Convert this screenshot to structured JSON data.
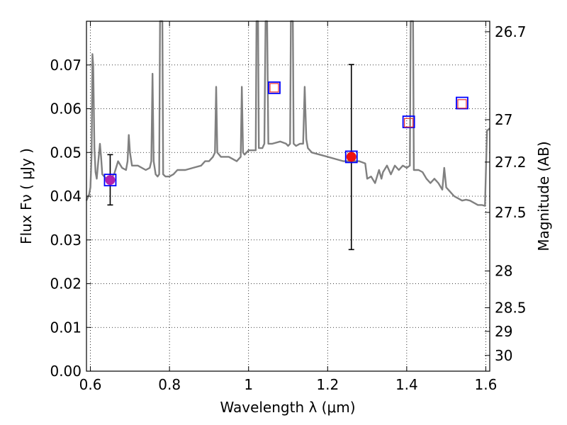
{
  "chart_data": {
    "type": "line",
    "xlabel": "Wavelength  λ (μm)",
    "ylabel": "Flux  Fν  ( μJy )",
    "ylabel_right": "Magnitude (AB)",
    "xlim": [
      0.59,
      1.61
    ],
    "ylim": [
      0.0,
      0.08
    ],
    "grid": true,
    "x_ticks": [
      0.6,
      0.8,
      1.0,
      1.2,
      1.4,
      1.6
    ],
    "x_tick_labels": [
      "0.6",
      "0.8",
      "1",
      "1.2",
      "1.4",
      "1.6"
    ],
    "y_ticks": [
      0.0,
      0.01,
      0.02,
      0.03,
      0.04,
      0.05,
      0.06,
      0.07
    ],
    "y_tick_labels": [
      "0.00",
      "0.01",
      "0.02",
      "0.03",
      "0.04",
      "0.05",
      "0.06",
      "0.07"
    ],
    "mag_ticks": [
      {
        "label": "26.7",
        "flux": 0.0776
      },
      {
        "label": "27",
        "flux": 0.0575
      },
      {
        "label": "27.2",
        "flux": 0.0478
      },
      {
        "label": "27.5",
        "flux": 0.0363
      },
      {
        "label": "28",
        "flux": 0.0229
      },
      {
        "label": "28.5",
        "flux": 0.0145
      },
      {
        "label": "29",
        "flux": 0.0091
      },
      {
        "label": "30",
        "flux": 0.0036
      }
    ],
    "model_spectrum": {
      "color": "#808080",
      "points": [
        [
          0.59,
          0.039
        ],
        [
          0.597,
          0.0405
        ],
        [
          0.6,
          0.042
        ],
        [
          0.603,
          0.05
        ],
        [
          0.605,
          0.0725
        ],
        [
          0.607,
          0.07
        ],
        [
          0.61,
          0.051
        ],
        [
          0.613,
          0.0455
        ],
        [
          0.616,
          0.044
        ],
        [
          0.62,
          0.048
        ],
        [
          0.624,
          0.052
        ],
        [
          0.627,
          0.049
        ],
        [
          0.63,
          0.045
        ],
        [
          0.64,
          0.044
        ],
        [
          0.65,
          0.044
        ],
        [
          0.66,
          0.045
        ],
        [
          0.67,
          0.048
        ],
        [
          0.68,
          0.0465
        ],
        [
          0.69,
          0.046
        ],
        [
          0.694,
          0.048
        ],
        [
          0.697,
          0.054
        ],
        [
          0.7,
          0.05
        ],
        [
          0.705,
          0.047
        ],
        [
          0.72,
          0.047
        ],
        [
          0.74,
          0.046
        ],
        [
          0.75,
          0.0465
        ],
        [
          0.754,
          0.048
        ],
        [
          0.757,
          0.068
        ],
        [
          0.76,
          0.048
        ],
        [
          0.765,
          0.045
        ],
        [
          0.77,
          0.0445
        ],
        [
          0.774,
          0.045
        ],
        [
          0.776,
          0.08
        ],
        [
          0.782,
          0.08
        ],
        [
          0.784,
          0.045
        ],
        [
          0.79,
          0.0445
        ],
        [
          0.8,
          0.0445
        ],
        [
          0.81,
          0.045
        ],
        [
          0.82,
          0.046
        ],
        [
          0.84,
          0.046
        ],
        [
          0.86,
          0.0465
        ],
        [
          0.88,
          0.047
        ],
        [
          0.89,
          0.048
        ],
        [
          0.9,
          0.048
        ],
        [
          0.91,
          0.049
        ],
        [
          0.915,
          0.05
        ],
        [
          0.918,
          0.065
        ],
        [
          0.921,
          0.05
        ],
        [
          0.93,
          0.049
        ],
        [
          0.95,
          0.049
        ],
        [
          0.97,
          0.048
        ],
        [
          0.98,
          0.049
        ],
        [
          0.983,
          0.065
        ],
        [
          0.986,
          0.05
        ],
        [
          0.99,
          0.0495
        ],
        [
          1.0,
          0.0505
        ],
        [
          1.01,
          0.0505
        ],
        [
          1.018,
          0.0505
        ],
        [
          1.02,
          0.08
        ],
        [
          1.024,
          0.08
        ],
        [
          1.026,
          0.051
        ],
        [
          1.035,
          0.051
        ],
        [
          1.04,
          0.052
        ],
        [
          1.043,
          0.08
        ],
        [
          1.047,
          0.08
        ],
        [
          1.05,
          0.052
        ],
        [
          1.06,
          0.052
        ],
        [
          1.08,
          0.0525
        ],
        [
          1.095,
          0.052
        ],
        [
          1.1,
          0.0515
        ],
        [
          1.105,
          0.052
        ],
        [
          1.107,
          0.08
        ],
        [
          1.112,
          0.08
        ],
        [
          1.114,
          0.052
        ],
        [
          1.12,
          0.0515
        ],
        [
          1.13,
          0.052
        ],
        [
          1.138,
          0.052
        ],
        [
          1.142,
          0.065
        ],
        [
          1.146,
          0.053
        ],
        [
          1.15,
          0.051
        ],
        [
          1.16,
          0.05
        ],
        [
          1.18,
          0.0495
        ],
        [
          1.2,
          0.049
        ],
        [
          1.22,
          0.0485
        ],
        [
          1.24,
          0.048
        ],
        [
          1.26,
          0.048
        ],
        [
          1.28,
          0.048
        ],
        [
          1.295,
          0.0475
        ],
        [
          1.3,
          0.044
        ],
        [
          1.31,
          0.0445
        ],
        [
          1.32,
          0.043
        ],
        [
          1.33,
          0.046
        ],
        [
          1.336,
          0.044
        ],
        [
          1.34,
          0.0455
        ],
        [
          1.35,
          0.047
        ],
        [
          1.36,
          0.045
        ],
        [
          1.37,
          0.047
        ],
        [
          1.38,
          0.046
        ],
        [
          1.39,
          0.047
        ],
        [
          1.4,
          0.0465
        ],
        [
          1.408,
          0.047
        ],
        [
          1.41,
          0.08
        ],
        [
          1.416,
          0.08
        ],
        [
          1.418,
          0.046
        ],
        [
          1.43,
          0.046
        ],
        [
          1.44,
          0.0455
        ],
        [
          1.45,
          0.044
        ],
        [
          1.46,
          0.043
        ],
        [
          1.47,
          0.044
        ],
        [
          1.48,
          0.043
        ],
        [
          1.49,
          0.0415
        ],
        [
          1.495,
          0.0465
        ],
        [
          1.5,
          0.042
        ],
        [
          1.51,
          0.041
        ],
        [
          1.52,
          0.04
        ],
        [
          1.53,
          0.0395
        ],
        [
          1.54,
          0.039
        ],
        [
          1.55,
          0.0392
        ],
        [
          1.56,
          0.039
        ],
        [
          1.57,
          0.0385
        ],
        [
          1.58,
          0.038
        ],
        [
          1.59,
          0.038
        ],
        [
          1.598,
          0.0378
        ],
        [
          1.603,
          0.055
        ],
        [
          1.61,
          0.0555
        ]
      ]
    },
    "model_photometry": {
      "marker": "open-square",
      "color": "#0000ff",
      "points": [
        {
          "x": 0.65,
          "y": 0.0437
        },
        {
          "x": 1.065,
          "y": 0.0648
        },
        {
          "x": 1.26,
          "y": 0.049
        },
        {
          "x": 1.405,
          "y": 0.057
        },
        {
          "x": 1.54,
          "y": 0.0613
        }
      ]
    },
    "upper_limit_points": {
      "marker": "open-square",
      "color": "#e83030",
      "points": [
        {
          "x": 1.065,
          "y": 0.0648
        },
        {
          "x": 1.405,
          "y": 0.0568
        },
        {
          "x": 1.54,
          "y": 0.0611
        }
      ]
    },
    "observed_points": [
      {
        "x": 0.65,
        "y": 0.0437,
        "yerr_low": 0.038,
        "yerr_high": 0.0495,
        "color": "#b020b0"
      },
      {
        "x": 1.26,
        "y": 0.049,
        "yerr_low": 0.0278,
        "yerr_high": 0.0701,
        "color": "#ee1111"
      }
    ]
  }
}
